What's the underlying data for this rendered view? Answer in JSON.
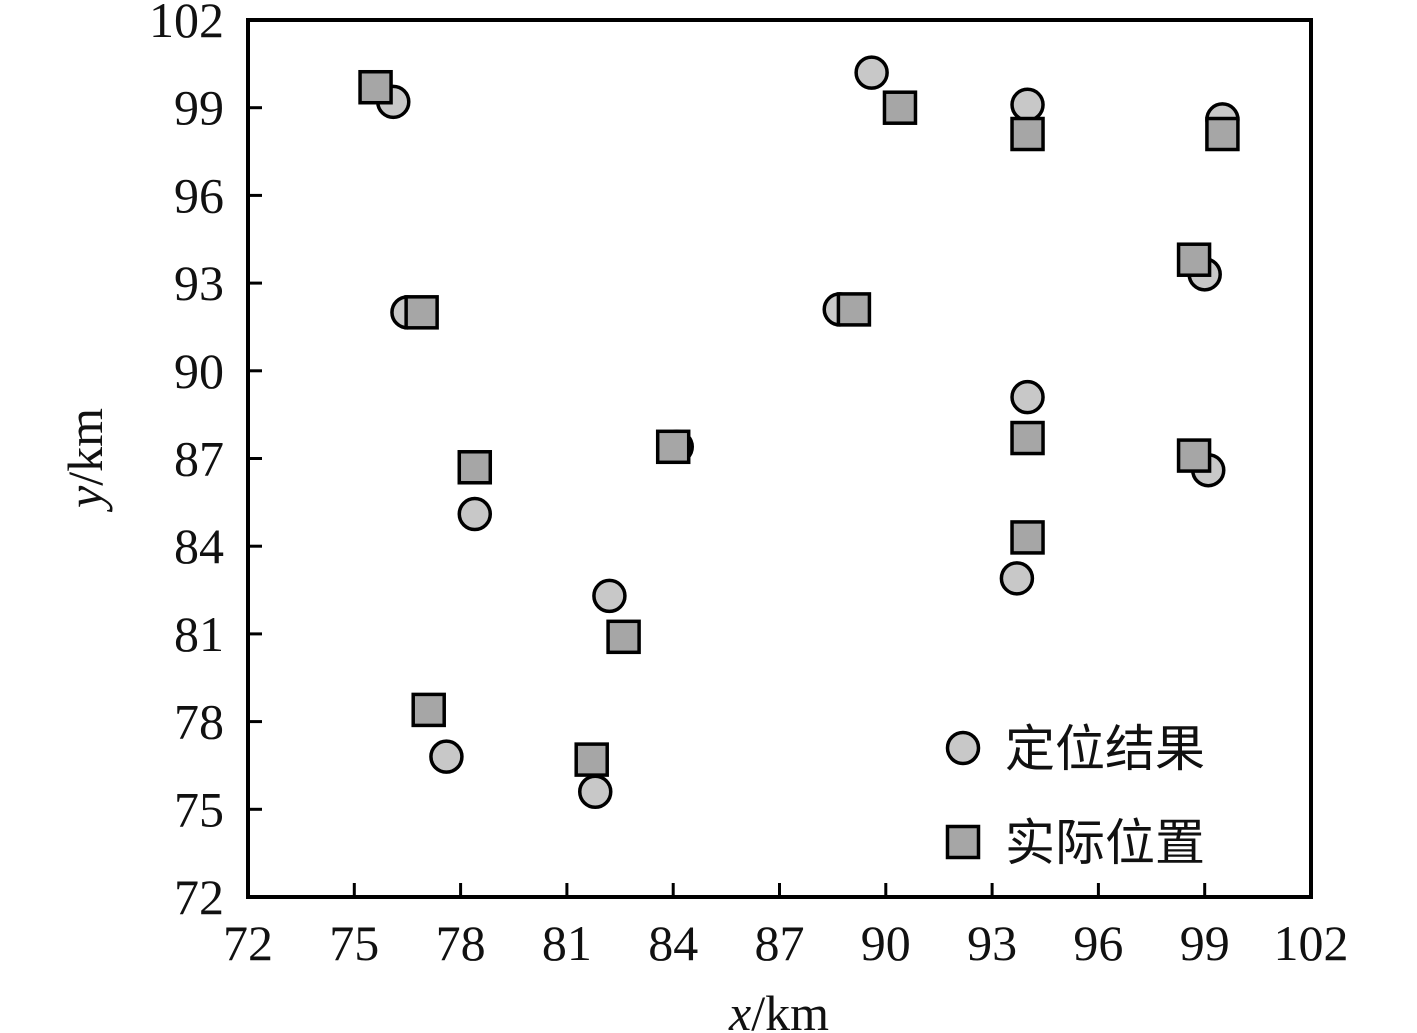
{
  "chart_data": {
    "type": "scatter",
    "xlabel": {
      "var": "x",
      "unit": "/km"
    },
    "ylabel": {
      "var": "y",
      "unit": "/km"
    },
    "xlim": [
      72,
      102
    ],
    "ylim": [
      72,
      102
    ],
    "xticks": [
      "72",
      "75",
      "78",
      "81",
      "84",
      "87",
      "90",
      "93",
      "96",
      "99",
      "102"
    ],
    "yticks": [
      "72",
      "75",
      "78",
      "81",
      "84",
      "87",
      "90",
      "93",
      "96",
      "99",
      "102"
    ],
    "grid": false,
    "legend_position": "bottom-right",
    "series": [
      {
        "name": "定位结果",
        "marker": "circle",
        "color": "#c8c8c8",
        "points": [
          {
            "x": 76.1,
            "y": 99.2
          },
          {
            "x": 76.5,
            "y": 92.0
          },
          {
            "x": 78.4,
            "y": 85.1
          },
          {
            "x": 77.6,
            "y": 76.8
          },
          {
            "x": 82.2,
            "y": 82.3
          },
          {
            "x": 81.8,
            "y": 75.6
          },
          {
            "x": 84.1,
            "y": 87.4
          },
          {
            "x": 89.6,
            "y": 100.2
          },
          {
            "x": 88.7,
            "y": 92.1
          },
          {
            "x": 94.0,
            "y": 99.1
          },
          {
            "x": 94.0,
            "y": 89.1
          },
          {
            "x": 93.7,
            "y": 82.9
          },
          {
            "x": 99.5,
            "y": 98.6
          },
          {
            "x": 99.0,
            "y": 93.3
          },
          {
            "x": 99.1,
            "y": 86.6
          }
        ]
      },
      {
        "name": "实际位置",
        "marker": "square",
        "color": "#a6a6a6",
        "points": [
          {
            "x": 75.6,
            "y": 99.7
          },
          {
            "x": 76.9,
            "y": 92.0
          },
          {
            "x": 78.4,
            "y": 86.7
          },
          {
            "x": 77.1,
            "y": 78.4
          },
          {
            "x": 82.6,
            "y": 80.9
          },
          {
            "x": 81.7,
            "y": 76.7
          },
          {
            "x": 84.0,
            "y": 87.4
          },
          {
            "x": 90.4,
            "y": 99.0
          },
          {
            "x": 89.1,
            "y": 92.1
          },
          {
            "x": 94.0,
            "y": 98.1
          },
          {
            "x": 94.0,
            "y": 87.7
          },
          {
            "x": 94.0,
            "y": 84.3
          },
          {
            "x": 99.5,
            "y": 98.1
          },
          {
            "x": 98.7,
            "y": 93.8
          },
          {
            "x": 98.7,
            "y": 87.1
          }
        ]
      }
    ]
  }
}
